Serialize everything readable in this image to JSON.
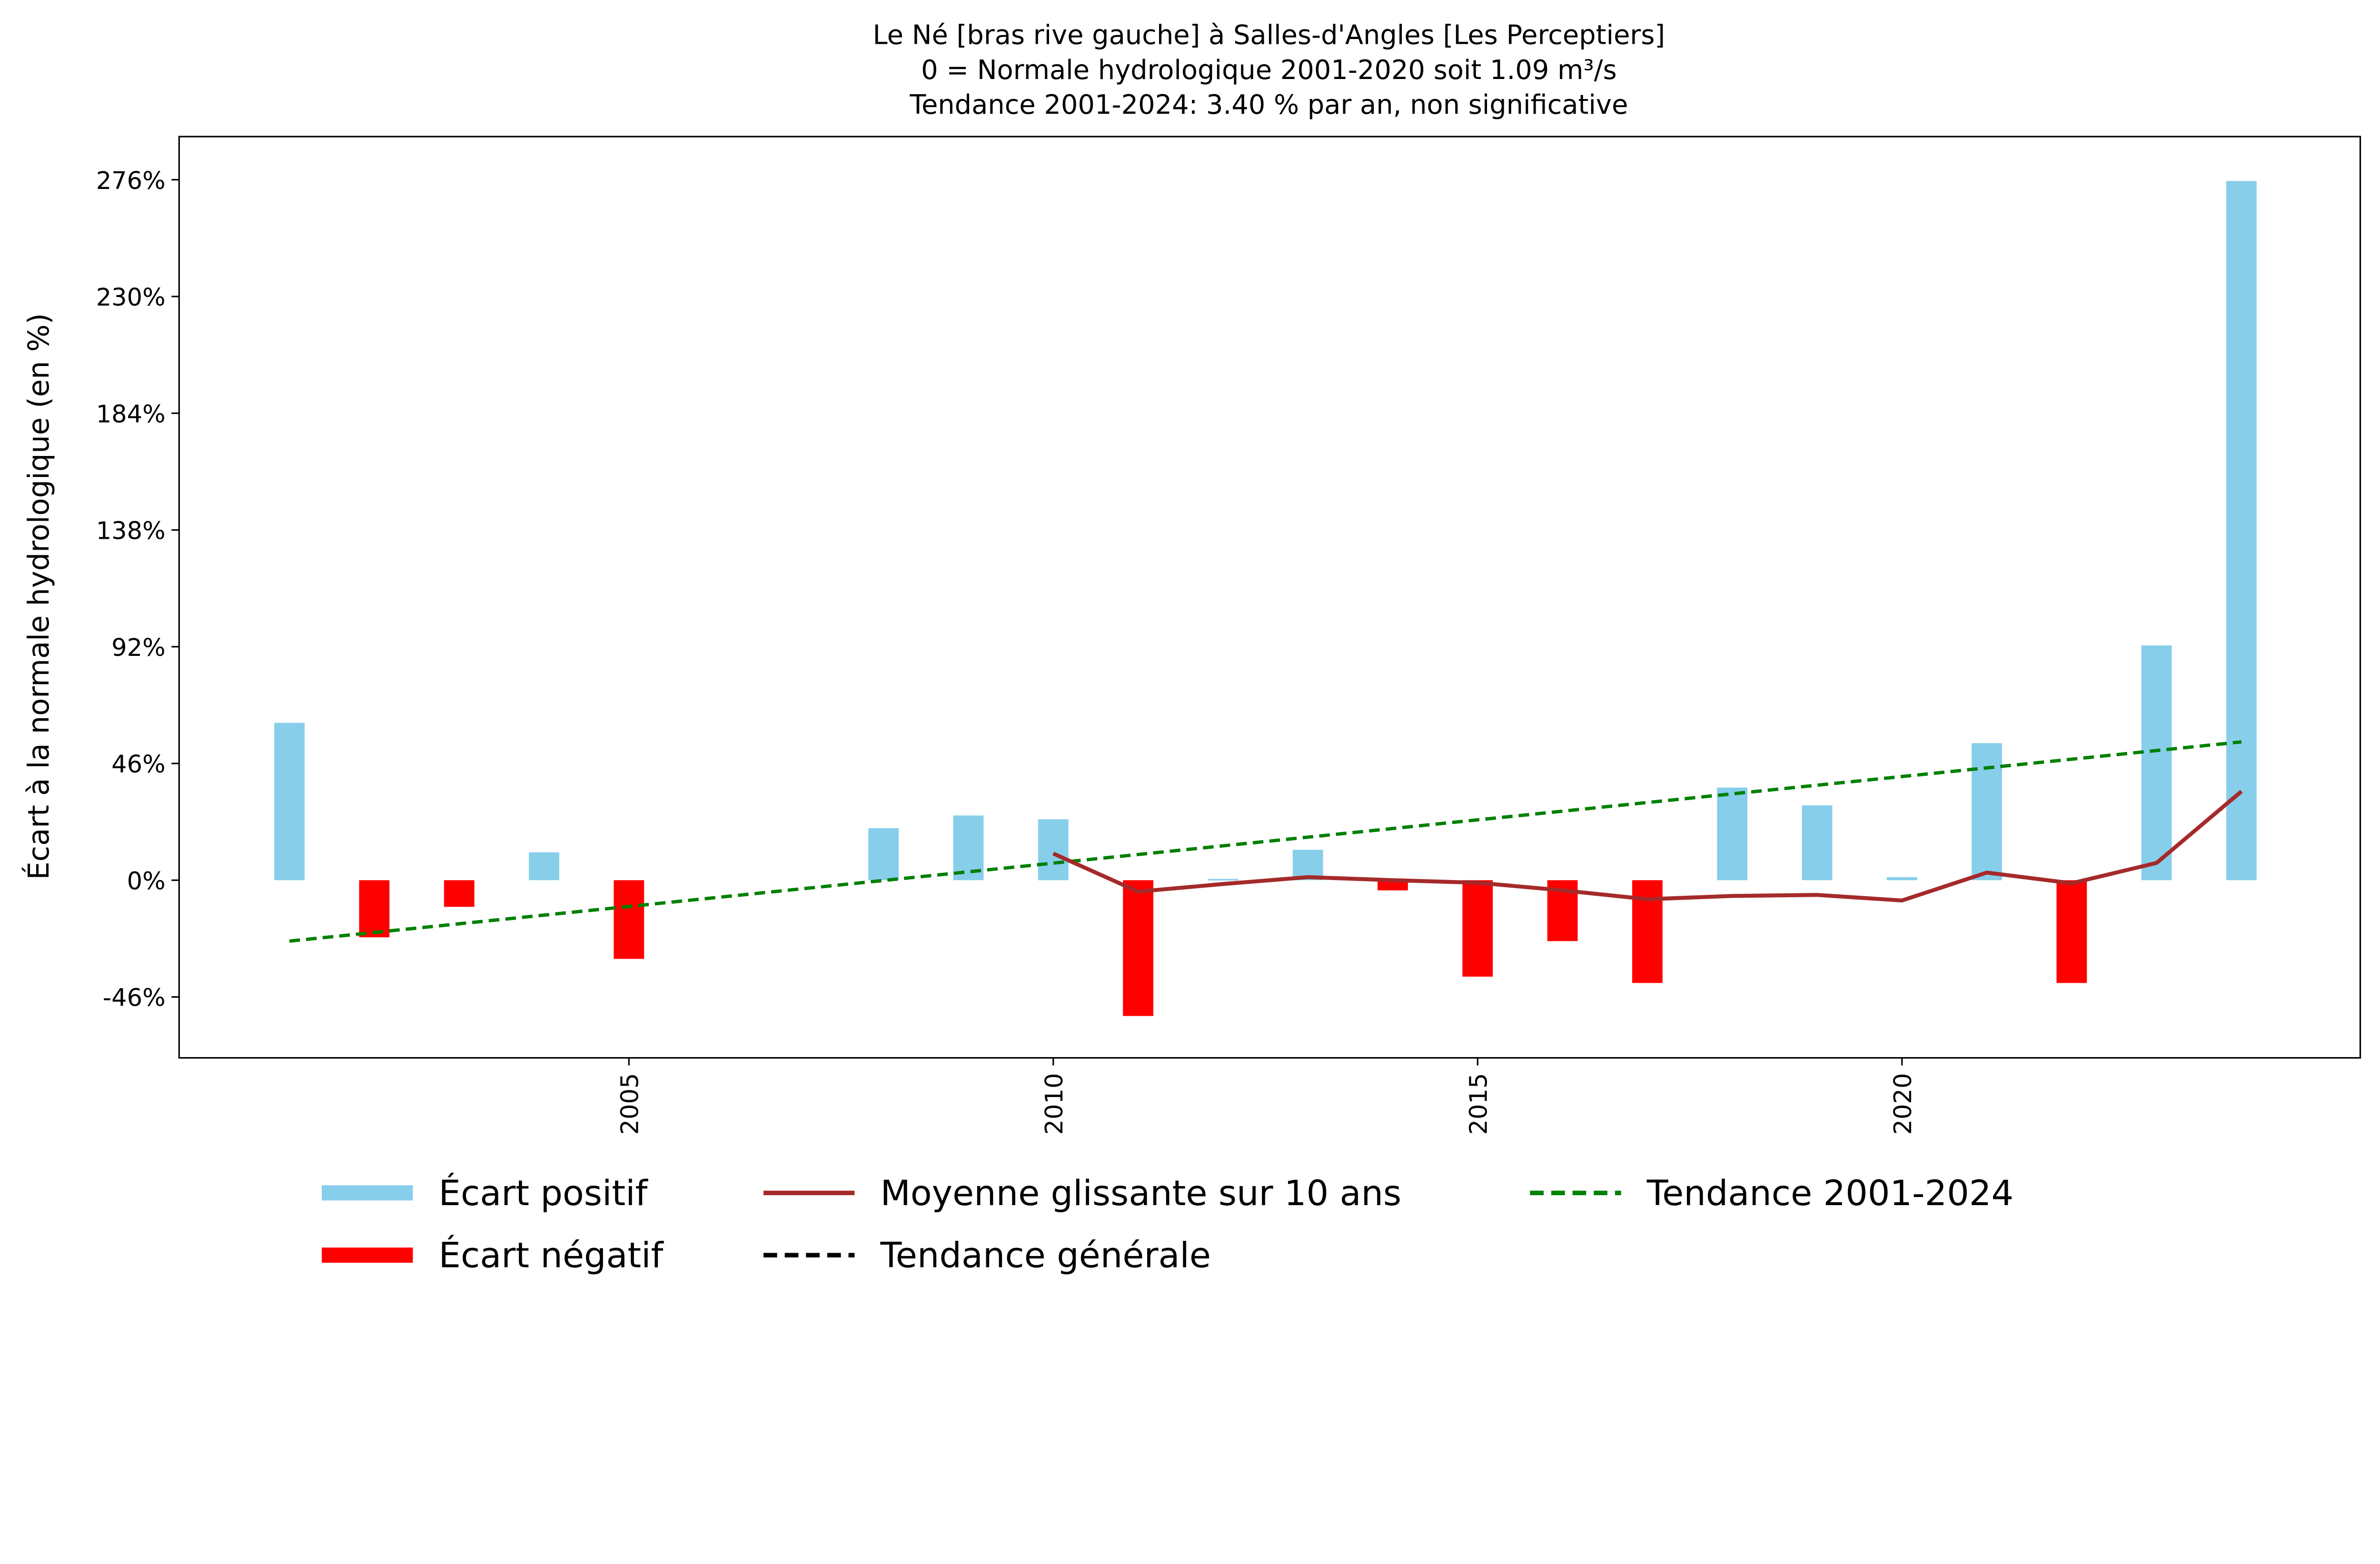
{
  "chart_data": {
    "type": "bar",
    "title_lines": [
      "Le Né [bras rive gauche] à Salles-d'Angles [Les Perceptiers]",
      "0 = Normale hydrologique 2001-2020 soit 1.09 m³/s",
      "Tendance 2001-2024: 3.40 % par an, non significative"
    ],
    "ylabel": "Écart à la normale hydrologique (en %)",
    "xlabel": "",
    "ylim": [
      -70,
      293
    ],
    "xlim": [
      1999.7,
      2025.4
    ],
    "yticks": [
      -46,
      0,
      46,
      92,
      138,
      184,
      230,
      276
    ],
    "ytick_labels": [
      "-46%",
      "0%",
      "46%",
      "92%",
      "138%",
      "184%",
      "230%",
      "276%"
    ],
    "xticks": [
      2005,
      2010,
      2015,
      2020
    ],
    "xtick_labels": [
      "2005",
      "2010",
      "2015",
      "2020"
    ],
    "years": [
      2001,
      2002,
      2003,
      2004,
      2005,
      2006,
      2007,
      2008,
      2009,
      2010,
      2011,
      2012,
      2013,
      2014,
      2015,
      2016,
      2017,
      2018,
      2019,
      2020,
      2021,
      2022,
      2023,
      2024
    ],
    "values": [
      62,
      -22.5,
      -10.5,
      11,
      -31,
      0,
      0,
      20.5,
      25.5,
      24,
      -53.5,
      0.5,
      12,
      -4,
      -38,
      -24,
      -40.5,
      36.5,
      29.5,
      1.2,
      54,
      -40.5,
      92.5,
      275.5
    ],
    "moving_average": {
      "name": "Moyenne glissante sur 10 ans",
      "years": [
        2010,
        2011,
        2012,
        2013,
        2014,
        2015,
        2016,
        2017,
        2018,
        2019,
        2020,
        2021,
        2022,
        2023,
        2024
      ],
      "values": [
        10.5,
        -4.5,
        -1.5,
        1.2,
        0,
        -1,
        -4,
        -7.5,
        -6.2,
        -5.8,
        -8,
        3,
        -1.2,
        6.8,
        35
      ]
    },
    "trend": {
      "name": "Tendance 2001-2024",
      "years": [
        2001,
        2024
      ],
      "values": [
        -24,
        54.5
      ]
    },
    "legend": {
      "placement": "bottom-center",
      "entries": [
        "Écart positif",
        "Écart négatif",
        "Moyenne glissante sur 10 ans",
        "Tendance générale",
        "Tendance 2001-2024"
      ]
    },
    "colors": {
      "positive": "#87ceeb",
      "negative": "#ff0000",
      "moving_average": "#a52a2a",
      "general_trend": "#000000",
      "trend": "#008000"
    },
    "grid": false
  }
}
